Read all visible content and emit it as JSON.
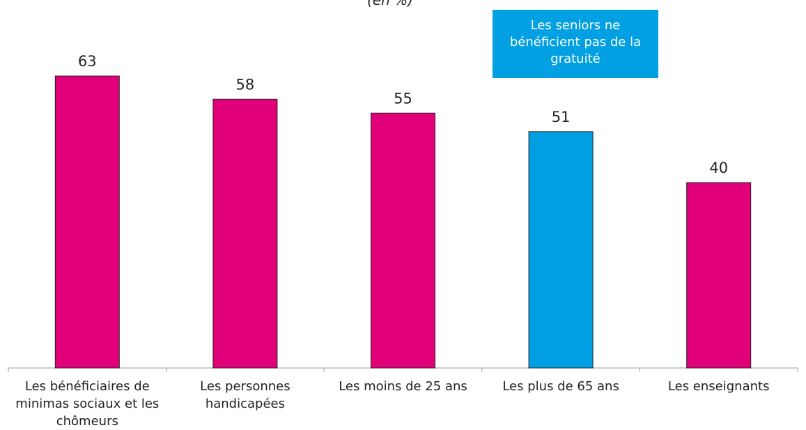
{
  "chart_data": {
    "type": "bar",
    "title": "(en %)",
    "categories": [
      "Les bénéficiaires de minimas sociaux et les chômeurs",
      "Les personnes handicapées",
      "Les moins de 25 ans",
      "Les plus de 65 ans",
      "Les enseignants"
    ],
    "values": [
      63,
      58,
      55,
      51,
      40
    ],
    "colors": [
      "#e2007a",
      "#e2007a",
      "#e2007a",
      "#009fe3",
      "#e2007a"
    ],
    "annotation": "Les seniors ne bénéficient pas de la gratuité"
  }
}
